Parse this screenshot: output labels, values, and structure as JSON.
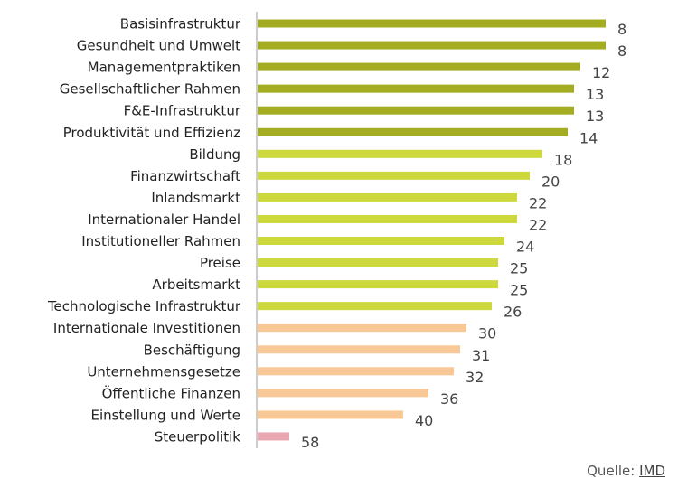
{
  "chart_data": {
    "type": "bar",
    "orientation": "horizontal",
    "title": "",
    "xlabel": "",
    "ylabel": "",
    "value_meaning": "rank (lower is better; bar length inverse to rank)",
    "xlim": [
      63,
      0
    ],
    "categories": [
      "Basisinfrastruktur",
      "Gesundheit und Umwelt",
      "Managementpraktiken",
      "Gesellschaftlicher Rahmen",
      "F&E-Infrastruktur",
      "Produktivität und Effizienz",
      "Bildung",
      "Finanzwirtschaft",
      "Inlandsmarkt",
      "Internationaler Handel",
      "Institutioneller Rahmen",
      "Preise",
      "Arbeitsmarkt",
      "Technologische Infrastruktur",
      "Internationale Investitionen",
      "Beschäftigung",
      "Unternehmensgesetze",
      "Öffentliche Finanzen",
      "Einstellung und Werte",
      "Steuerpolitik"
    ],
    "values": [
      8,
      8,
      12,
      13,
      13,
      14,
      18,
      20,
      22,
      22,
      24,
      25,
      25,
      26,
      30,
      31,
      32,
      36,
      40,
      58
    ],
    "groups": [
      0,
      0,
      0,
      0,
      0,
      0,
      1,
      1,
      1,
      1,
      1,
      1,
      1,
      1,
      2,
      2,
      2,
      2,
      2,
      3
    ],
    "group_colors": [
      "#a4ad22",
      "#ccd83c",
      "#f9c897",
      "#e8a7b1"
    ],
    "axis_color": "#cccccc"
  },
  "source": {
    "label": "Quelle:",
    "link": "IMD"
  }
}
